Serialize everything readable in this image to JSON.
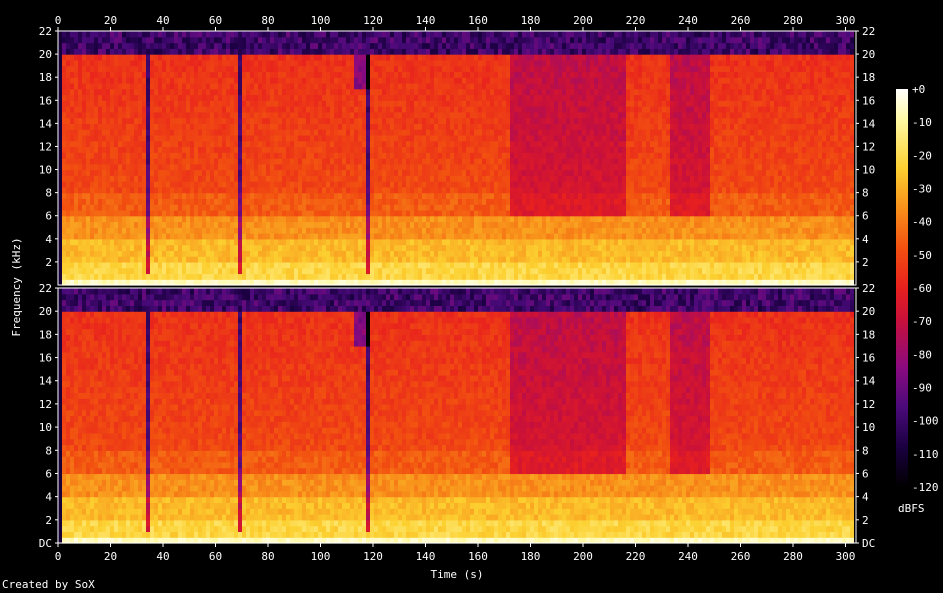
{
  "chart_data": {
    "type": "heatmap",
    "subtype": "spectrogram",
    "channels": 2,
    "x": {
      "label": "Time (s)",
      "range": [
        0,
        304
      ],
      "ticks": [
        0,
        20,
        40,
        60,
        80,
        100,
        120,
        140,
        160,
        180,
        200,
        220,
        240,
        260,
        280,
        300
      ]
    },
    "y": {
      "label": "Frequency (kHz)",
      "range": [
        0,
        22
      ],
      "ticks": [
        0,
        2,
        4,
        6,
        8,
        10,
        12,
        14,
        16,
        18,
        20,
        22
      ],
      "tick_labels": [
        "DC",
        "2",
        "4",
        "6",
        "8",
        "10",
        "12",
        "14",
        "16",
        "18",
        "20",
        "22"
      ]
    },
    "colorbar": {
      "label": "dBFS",
      "range": [
        -120,
        0
      ],
      "ticks": [
        0,
        -10,
        -20,
        -30,
        -40,
        -50,
        -60,
        -70,
        -80,
        -90,
        -100,
        -110,
        -120
      ],
      "tick_labels": [
        "+0",
        "-10",
        "-20",
        "-30",
        "-40",
        "-50",
        "-60",
        "-70",
        "-80",
        "-90",
        "-100",
        "-110",
        "-120"
      ],
      "colors": [
        "#000000",
        "#1a0040",
        "#4a0a7a",
        "#8a0a80",
        "#c8103a",
        "#e8201e",
        "#f25010",
        "#f8901a",
        "#fcd030",
        "#fff8a0",
        "#ffffff"
      ]
    },
    "lowpass_cutoff_khz": 20,
    "dropouts_s": [
      34,
      69,
      117
    ],
    "purple_regions_s": [
      [
        172,
        215
      ],
      [
        232,
        247
      ]
    ],
    "end_of_signal_s": 302,
    "grid": false
  },
  "footer": {
    "credit": "Created by SoX"
  }
}
